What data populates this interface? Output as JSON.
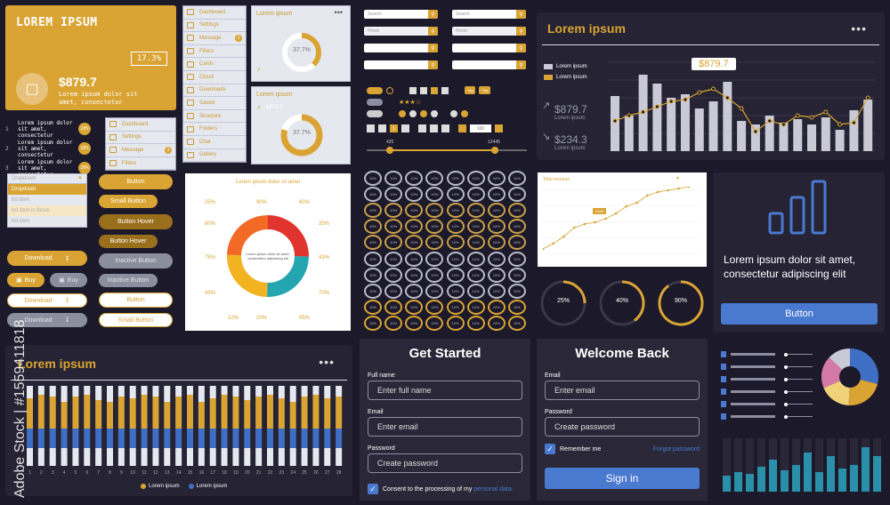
{
  "colors": {
    "gold": "#d9a433",
    "blue": "#3f6fc4",
    "dark": "#252334",
    "light": "#e6e8ef"
  },
  "gold_card": {
    "title": "LOREM IPSUM",
    "percent": "17.3%",
    "price": "$879.7",
    "desc": "Lorem ipsum dolor sit amet, consectetur",
    "icon": "cast-icon"
  },
  "list": {
    "items": [
      {
        "num": "1",
        "text": "Lorem ipsum dolor sit amet, consectetur",
        "badge": "20%"
      },
      {
        "num": "2",
        "text": "Lorem ipsum dolor sit amet, consectetur",
        "badge": "20%"
      },
      {
        "num": "3",
        "text": "Lorem ipsum dolor sit amet, consectetur",
        "badge": "20%"
      }
    ]
  },
  "menu_large": {
    "items": [
      {
        "label": "Dashboard",
        "icon": "grid-icon",
        "badge": ""
      },
      {
        "label": "Settings",
        "icon": "gear-icon",
        "badge": ""
      },
      {
        "label": "Message",
        "icon": "mail-icon",
        "badge": "3"
      },
      {
        "label": "Filters",
        "icon": "filter-icon",
        "badge": ""
      },
      {
        "label": "Cards",
        "icon": "card-icon",
        "badge": ""
      },
      {
        "label": "Cloud",
        "icon": "cloud-icon",
        "badge": ""
      },
      {
        "label": "Downloads",
        "icon": "download-icon",
        "badge": ""
      },
      {
        "label": "Saved",
        "icon": "bookmark-icon",
        "badge": ""
      },
      {
        "label": "Structure",
        "icon": "structure-icon",
        "badge": ""
      },
      {
        "label": "Folders",
        "icon": "folder-icon",
        "badge": ""
      },
      {
        "label": "Chat",
        "icon": "chat-icon",
        "badge": ""
      },
      {
        "label": "Gallery",
        "icon": "gallery-icon",
        "badge": ""
      }
    ]
  },
  "menu_small": {
    "items": [
      {
        "label": "Dashboard",
        "badge": ""
      },
      {
        "label": "Settings",
        "badge": ""
      },
      {
        "label": "Message",
        "badge": "3"
      },
      {
        "label": "Filters",
        "badge": ""
      }
    ]
  },
  "lorem_card1": {
    "title": "Lorem ipsum",
    "percent": "37.7%",
    "stat": "$879.7"
  },
  "lorem_card2": {
    "title": "Lorem ipsum",
    "percent": "37.7%",
    "stat": "$879.7"
  },
  "dropdown": {
    "selected": "Dropdown",
    "options": [
      "Dropdown",
      "list item",
      "list item in focus",
      "list item"
    ]
  },
  "buttons": {
    "button": "Button",
    "small_button": "Small Button",
    "button_hover": "Button Hover",
    "button_hover2": "Button Hover",
    "inactive_button": "Inactive Button",
    "inactive_button2": "Inactive Button",
    "download": "Download",
    "buy": "Buy",
    "buy2": "Buy",
    "download_out": "Download",
    "download_gray": "Download",
    "button_out": "Button",
    "small_button_out": "Small Button"
  },
  "infographic": {
    "title": "Lorem ipsum dolor sit amet",
    "center_text": "Lorem ipsum dolor sit amet, consectetur adipiscing elit",
    "labels": [
      "25%",
      "90%",
      "60%",
      "35%",
      "43%",
      "70%",
      "95%",
      "20%",
      "10%",
      "43%",
      "75%",
      "80%"
    ]
  },
  "search": {
    "search_ph": "Search",
    "hover_ph": "Hover",
    "search_ph2": "Search",
    "hover_ph2": "Hover"
  },
  "controls": {
    "page_label": "1",
    "stepper_value": "100",
    "slider_min": "425",
    "slider_max": "12445"
  },
  "tags": {
    "tag1": "Tag",
    "tag2": "Tag"
  },
  "big_chart": {
    "title": "Lorem ipsum",
    "legend1": "Lorem ipsum",
    "legend2": "Lorem ipsum",
    "callout": "$879.7",
    "stat1": "$879.7",
    "stat1_label": "Lorem ipsum",
    "stat2": "$234.3",
    "stat2_label": "Lorem ipsum"
  },
  "revenue": {
    "title": "Total revenue",
    "callout": "2345"
  },
  "donuts": {
    "d1": "25%",
    "d2": "40%",
    "d3": "90%"
  },
  "promo": {
    "text": "Lorem ipsum dolor sit amet, consectetur adipiscing elit",
    "button": "Button"
  },
  "stack_chart": {
    "title": "Lorem ipsum",
    "legend1": "Lorem ipsum",
    "legend2": "Lorem ipsum"
  },
  "get_started": {
    "title": "Get Started",
    "name_label": "Full name",
    "name_ph": "Enter full name",
    "email_label": "Email",
    "email_ph": "Enter email",
    "password_label": "Password",
    "password_ph": "Create password",
    "consent": "Consent to the processing of my ",
    "consent_link": "personal data."
  },
  "welcome": {
    "title": "Welcome Back",
    "email_label": "Email",
    "email_ph": "Enter email",
    "password_label": "Password",
    "password_ph": "Create password",
    "remember": "Remember me",
    "forgot": "Forgot password",
    "signin": "Sign in"
  },
  "watermark": {
    "side": "Adobe Stock | #1559411818"
  }
}
